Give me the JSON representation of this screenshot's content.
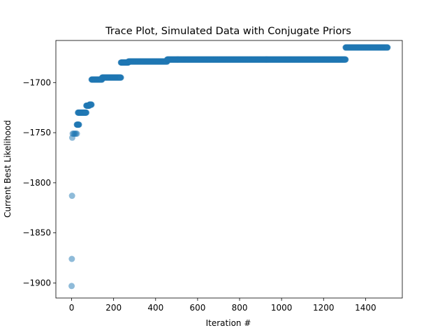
{
  "chart_data": {
    "type": "scatter",
    "title": "Trace Plot, Simulated Data with Conjugate Priors",
    "xlabel": "Iteration #",
    "ylabel": "Current Best Likelihood",
    "xlim": [
      -75,
      1575
    ],
    "ylim": [
      -1915,
      -1658
    ],
    "xticks": [
      0,
      200,
      400,
      600,
      800,
      1000,
      1200,
      1400
    ],
    "xtick_labels": [
      "0",
      "200",
      "400",
      "600",
      "800",
      "1000",
      "1200",
      "1400"
    ],
    "yticks": [
      -1900,
      -1850,
      -1800,
      -1750,
      -1700
    ],
    "ytick_labels": [
      "−1900",
      "−1850",
      "−1800",
      "−1750",
      "−1700"
    ],
    "grid": false,
    "legend": "none",
    "marker_color": "#1f77b4",
    "marker_alpha": 0.5,
    "series": [
      {
        "points": [
          [
            0,
            -1903
          ],
          [
            1,
            -1876
          ],
          [
            2,
            -1813
          ],
          [
            3,
            -1755
          ],
          [
            5,
            -1751
          ],
          [
            10,
            -1751
          ],
          [
            15,
            -1751
          ],
          [
            20,
            -1751
          ],
          [
            25,
            -1751
          ]
        ],
        "runs": [
          {
            "x_start": 25,
            "x_end": 35,
            "y": -1742
          },
          {
            "x_start": 30,
            "x_end": 70,
            "y": -1730
          },
          {
            "x_start": 70,
            "x_end": 85,
            "y": -1723
          },
          {
            "x_start": 85,
            "x_end": 95,
            "y": -1722
          },
          {
            "x_start": 95,
            "x_end": 145,
            "y": -1697
          },
          {
            "x_start": 145,
            "x_end": 235,
            "y": -1695
          },
          {
            "x_start": 235,
            "x_end": 270,
            "y": -1680
          },
          {
            "x_start": 270,
            "x_end": 455,
            "y": -1679
          },
          {
            "x_start": 455,
            "x_end": 1305,
            "y": -1677
          },
          {
            "x_start": 1305,
            "x_end": 1505,
            "y": -1665
          }
        ]
      }
    ]
  }
}
